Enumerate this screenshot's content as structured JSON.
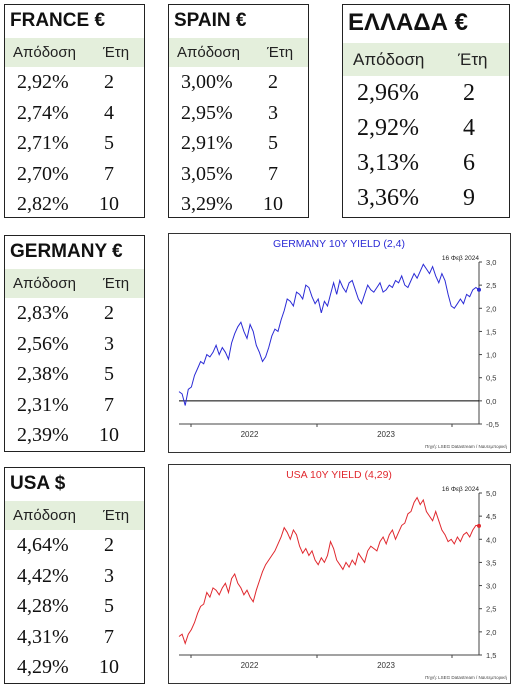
{
  "yield_col": "Απόδοση",
  "years_col": "Έτη",
  "tables": {
    "france": {
      "title": "FRANCE €",
      "rows": [
        {
          "yield": "2,92%",
          "years": "2"
        },
        {
          "yield": "2,74%",
          "years": "4"
        },
        {
          "yield": "2,71%",
          "years": "5"
        },
        {
          "yield": "2,70%",
          "years": "7"
        },
        {
          "yield": "2,82%",
          "years": "10"
        }
      ]
    },
    "spain": {
      "title": "SPAIN €",
      "rows": [
        {
          "yield": "3,00%",
          "years": "2"
        },
        {
          "yield": "2,95%",
          "years": "3"
        },
        {
          "yield": "2,91%",
          "years": "5"
        },
        {
          "yield": "3,05%",
          "years": "7"
        },
        {
          "yield": "3,29%",
          "years": "10"
        }
      ]
    },
    "greece": {
      "title": "ΕΛΛΑΔΑ €",
      "rows": [
        {
          "yield": "2,96%",
          "years": "2"
        },
        {
          "yield": "2,92%",
          "years": "4"
        },
        {
          "yield": "3,13%",
          "years": "6"
        },
        {
          "yield": "3,36%",
          "years": "9"
        }
      ]
    },
    "germany": {
      "title": "GERMANY €",
      "rows": [
        {
          "yield": "2,83%",
          "years": "2"
        },
        {
          "yield": "2,56%",
          "years": "3"
        },
        {
          "yield": "2,38%",
          "years": "5"
        },
        {
          "yield": "2,31%",
          "years": "7"
        },
        {
          "yield": "2,39%",
          "years": "10"
        }
      ]
    },
    "usa": {
      "title": "USA $",
      "rows": [
        {
          "yield": "4,64%",
          "years": "2"
        },
        {
          "yield": "4,42%",
          "years": "3"
        },
        {
          "yield": "4,28%",
          "years": "5"
        },
        {
          "yield": "4,31%",
          "years": "7"
        },
        {
          "yield": "4,29%",
          "years": "10"
        }
      ]
    }
  },
  "chart_data": [
    {
      "type": "line",
      "title": "GERMANY 10Y YIELD  (2,4)",
      "date_label": "16 Φεβ 2024",
      "source": "Πηγή: LSEG Datastream / Ναυτεμπορική",
      "color": "#2b2bd6",
      "x_tick_labels": [
        "2022",
        "2023"
      ],
      "ylim": [
        -0.5,
        3.0
      ],
      "y_ticks": [
        -0.5,
        0.0,
        0.5,
        1.0,
        1.5,
        2.0,
        2.5,
        3.0
      ],
      "y_tick_labels": [
        "-0,5",
        "0,0",
        "0,5",
        "1,0",
        "1,5",
        "2,0",
        "2,5",
        "3,0"
      ],
      "zero_line": true,
      "series": [
        {
          "values": [
            0.2,
            0.15,
            -0.1,
            0.25,
            0.3,
            0.55,
            0.7,
            0.85,
            0.8,
            1.0,
            0.95,
            1.05,
            1.2,
            1.0,
            1.15,
            1.05,
            0.9,
            1.25,
            1.45,
            1.6,
            1.7,
            1.5,
            1.35,
            1.65,
            1.5,
            1.2,
            1.05,
            0.85,
            0.95,
            1.15,
            1.4,
            1.55,
            1.5,
            1.75,
            1.95,
            2.2,
            2.15,
            2.05,
            2.35,
            2.3,
            2.2,
            2.5,
            2.45,
            2.25,
            2.1,
            2.2,
            1.9,
            2.15,
            2.05,
            2.3,
            2.55,
            2.3,
            2.6,
            2.45,
            2.35,
            2.55,
            2.6,
            2.4,
            2.2,
            2.1,
            2.3,
            2.5,
            2.4,
            2.35,
            2.45,
            2.55,
            2.35,
            2.4,
            2.5,
            2.45,
            2.6,
            2.55,
            2.7,
            2.5,
            2.45,
            2.6,
            2.75,
            2.65,
            2.8,
            2.95,
            2.85,
            2.75,
            2.9,
            2.7,
            2.55,
            2.75,
            2.6,
            2.3,
            2.05,
            2.0,
            2.1,
            2.2,
            2.1,
            2.3,
            2.25,
            2.4,
            2.45,
            2.4
          ]
        }
      ]
    },
    {
      "type": "line",
      "title": "USA 10Y YIELD  (4,29)",
      "date_label": "16 Φεβ 2024",
      "source": "Πηγή: LSEG Datastream / Ναυτεμπορική",
      "color": "#e0282e",
      "x_tick_labels": [
        "2022",
        "2023"
      ],
      "ylim": [
        1.5,
        5.0
      ],
      "y_ticks": [
        1.5,
        2.0,
        2.5,
        3.0,
        3.5,
        4.0,
        4.5,
        5.0
      ],
      "y_tick_labels": [
        "1,5",
        "2,0",
        "2,5",
        "3,0",
        "3,5",
        "4,0",
        "4,5",
        "5,0"
      ],
      "zero_line": false,
      "series": [
        {
          "values": [
            1.9,
            1.95,
            1.75,
            1.95,
            2.05,
            2.2,
            2.4,
            2.55,
            2.6,
            2.85,
            2.75,
            2.95,
            2.9,
            2.8,
            2.95,
            3.05,
            2.85,
            3.15,
            3.25,
            3.05,
            2.95,
            2.8,
            2.9,
            2.75,
            2.65,
            2.9,
            3.1,
            3.3,
            3.45,
            3.55,
            3.65,
            3.75,
            3.9,
            4.05,
            4.25,
            4.15,
            4.0,
            4.2,
            4.1,
            3.85,
            3.7,
            3.8,
            3.65,
            3.75,
            3.55,
            3.45,
            3.6,
            3.5,
            3.65,
            3.95,
            3.8,
            3.55,
            3.45,
            3.35,
            3.5,
            3.4,
            3.55,
            3.45,
            3.7,
            3.6,
            3.5,
            3.75,
            3.85,
            3.8,
            3.75,
            3.95,
            4.05,
            3.9,
            4.1,
            4.2,
            4.0,
            4.15,
            4.3,
            4.35,
            4.55,
            4.6,
            4.8,
            4.9,
            4.75,
            4.85,
            4.6,
            4.5,
            4.4,
            4.6,
            4.4,
            4.2,
            4.1,
            3.95,
            4.0,
            3.9,
            4.05,
            3.95,
            4.1,
            4.15,
            4.05,
            4.2,
            4.3,
            4.29
          ]
        }
      ]
    }
  ]
}
